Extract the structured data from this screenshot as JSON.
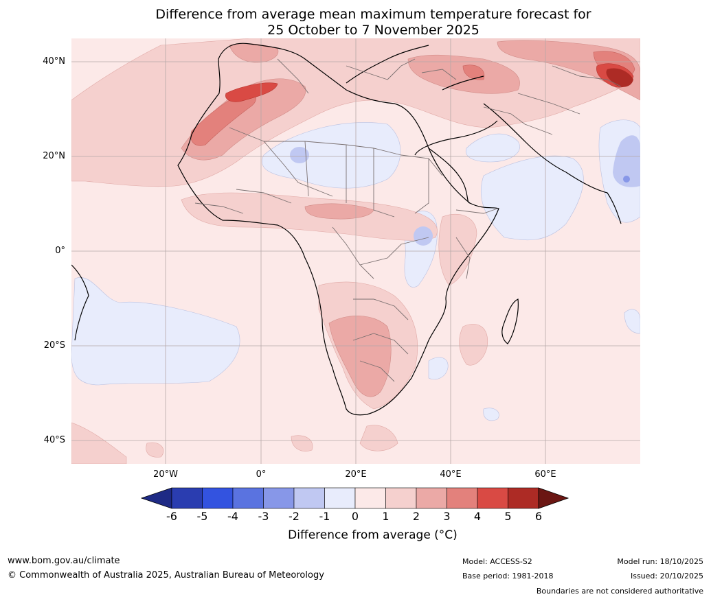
{
  "title": {
    "line1": "Difference from average mean maximum temperature forecast for",
    "line2": "25 October to 7 November 2025"
  },
  "map": {
    "lat_labels": [
      "40°N",
      "20°N",
      "0°",
      "20°S",
      "40°S"
    ],
    "lon_labels": [
      "20°W",
      "0°",
      "20°E",
      "40°E",
      "60°E"
    ],
    "extent": {
      "lon": [
        -40,
        80
      ],
      "lat": [
        -45,
        45
      ]
    }
  },
  "colorbar": {
    "ticks": [
      "-6",
      "-5",
      "-4",
      "-3",
      "-2",
      "-1",
      "0",
      "1",
      "2",
      "3",
      "4",
      "5",
      "6"
    ],
    "colors": [
      "#1e2a85",
      "#2a3db0",
      "#3353e0",
      "#5a73e0",
      "#8797e8",
      "#c0c8f2",
      "#e8ecfc",
      "#fce9e8",
      "#f5d0ce",
      "#eba9a6",
      "#e3817c",
      "#d94a44",
      "#ad2b25",
      "#6b1613"
    ],
    "label": "Difference from average (°C)"
  },
  "footer": {
    "website": "www.bom.gov.au/climate",
    "copyright": "© Commonwealth of Australia 2025, Australian Bureau of Meteorology",
    "model": "Model: ACCESS-S2",
    "base_period": "Base period: 1981-2018",
    "model_run": "Model run: 18/10/2025",
    "issued": "Issued: 20/10/2025",
    "disclaimer": "Boundaries are not considered authoritative"
  }
}
